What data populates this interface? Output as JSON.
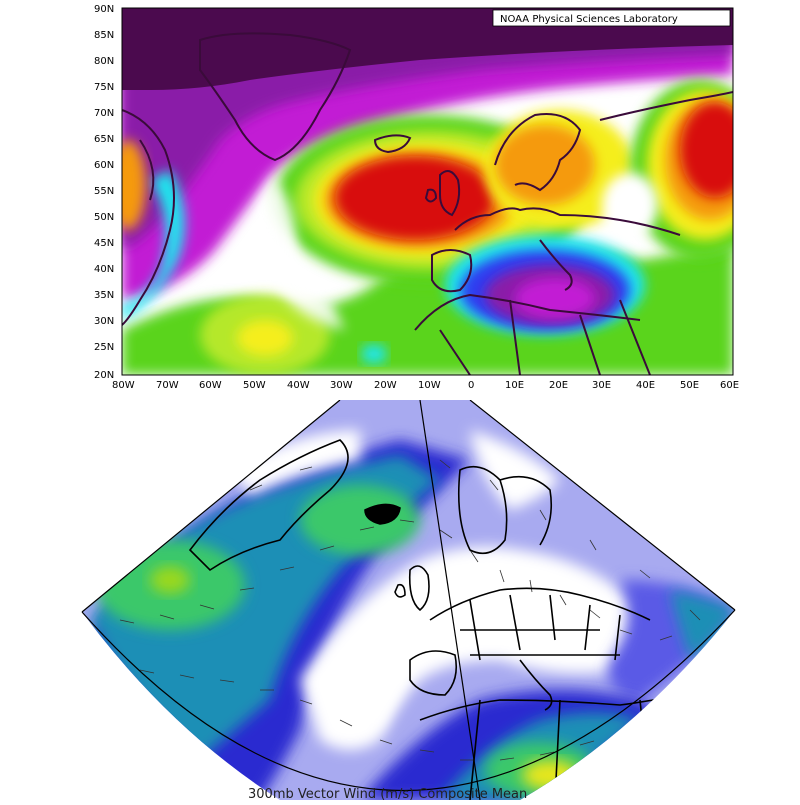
{
  "top_map": {
    "credit": "NOAA Physical Sciences Laboratory",
    "lat_labels": [
      "90N",
      "85N",
      "80N",
      "75N",
      "70N",
      "65N",
      "60N",
      "55N",
      "50N",
      "45N",
      "40N",
      "35N",
      "30N",
      "25N",
      "20N"
    ],
    "lon_labels": [
      "80W",
      "70W",
      "60W",
      "50W",
      "40W",
      "30W",
      "20W",
      "10W",
      "0",
      "10E",
      "20E",
      "30E",
      "40E",
      "50E",
      "60E"
    ],
    "colors": {
      "dark_purple": "#4b0a4e",
      "purple": "#8a1ea8",
      "magenta": "#c21dd4",
      "blue": "#2d3cf0",
      "cyan": "#1ee6ee",
      "green": "#5ad41a",
      "lime": "#b5e82a",
      "yellow": "#f5ee1a",
      "orange": "#f59a0a",
      "red": "#d80c0c",
      "coast": "#3a0b3a"
    }
  },
  "bottom_map": {
    "caption": "300mb Vector Wind (m/s) Composite Mean",
    "colors": {
      "white": "#ffffff",
      "lavender": "#a8aaf0",
      "blue": "#5a5ae6",
      "deep_blue": "#2a2ad0",
      "teal": "#1e8fb6",
      "green": "#3bc86a",
      "lime": "#9ad81e",
      "yellow": "#e6e61e",
      "coast": "#000000"
    }
  }
}
